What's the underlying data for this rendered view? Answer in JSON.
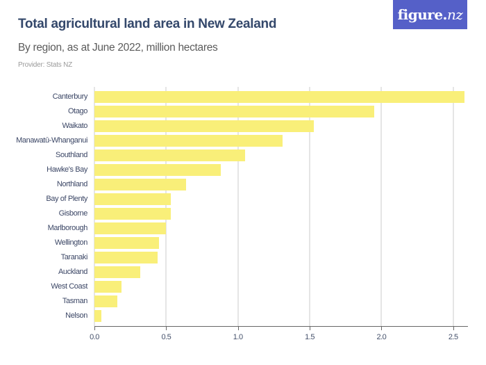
{
  "header": {
    "title": "Total agricultural land area in New Zealand",
    "subtitle": "By region, as at June 2022, million hectares",
    "provider": "Provider: Stats NZ"
  },
  "logo": {
    "text_main": "figure.",
    "text_accent": "nz",
    "color": "#5560c8"
  },
  "colors": {
    "bar": "#f9ef79",
    "gridline": "#e5e5e5",
    "axis": "#666666",
    "title": "#34486b"
  },
  "chart_data": {
    "type": "bar",
    "orientation": "horizontal",
    "title": "Total agricultural land area in New Zealand",
    "subtitle": "By region, as at June 2022, million hectares",
    "xlabel": "",
    "ylabel": "",
    "xlim": [
      0,
      2.6
    ],
    "x_ticks": [
      "0.0",
      "0.5",
      "1.0",
      "1.5",
      "2.0",
      "2.5"
    ],
    "grid": true,
    "legend": "none",
    "categories": [
      "Canterbury",
      "Otago",
      "Waikato",
      "Manawatū-Whanganui",
      "Southland",
      "Hawke's Bay",
      "Northland",
      "Bay of Plenty",
      "Gisborne",
      "Marlborough",
      "Wellington",
      "Taranaki",
      "Auckland",
      "West Coast",
      "Tasman",
      "Nelson"
    ],
    "values": [
      2.58,
      1.95,
      1.53,
      1.31,
      1.05,
      0.88,
      0.64,
      0.53,
      0.53,
      0.5,
      0.45,
      0.44,
      0.32,
      0.19,
      0.16,
      0.05
    ]
  }
}
